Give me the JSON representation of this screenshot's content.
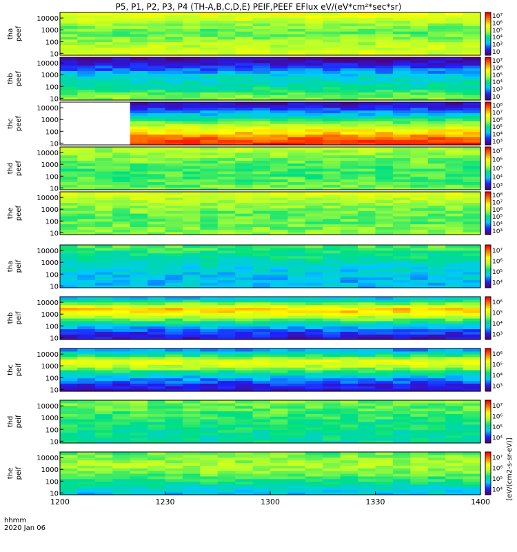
{
  "chart_data": {
    "type": "heatmap",
    "title": "P5, P1, P2, P3, P4 (TH-A,B,C,D,E) PEIF,PEEF EFlux eV/(eV*cm²*sec*sr)",
    "cbar_unit_label": "[eV/(cm2-s-sr-eV)]",
    "x_axis": {
      "ticks": [
        "1200",
        "1230",
        "1300",
        "1330",
        "1400"
      ],
      "corner_line1": "hhmm",
      "corner_line2": "2020 Jan 06",
      "range": [
        "12:00",
        "14:00"
      ]
    },
    "y_axis": {
      "scale": "log",
      "range": [
        7,
        30000
      ],
      "ticks": [
        "10",
        "100",
        "1000",
        "10000"
      ]
    },
    "colormap": [
      "#500070",
      "#2020ff",
      "#00c8ff",
      "#00e080",
      "#b0ff30",
      "#ffff00",
      "#ff8000",
      "#ff0000"
    ],
    "panels": [
      {
        "name": "tha peef",
        "label1": "tha",
        "label2": "peef",
        "cbar": [
          "10",
          "10³",
          "10⁴",
          "10⁵",
          "10⁶",
          "10⁷"
        ],
        "profile": [
          0.64,
          0.62,
          0.58,
          0.52,
          0.5,
          0.55,
          0.62,
          0.68
        ]
      },
      {
        "name": "thb peef",
        "label1": "thb",
        "label2": "peef",
        "cbar": [
          "10",
          "10³",
          "10⁴",
          "10⁵",
          "10⁶",
          "10⁷"
        ],
        "profile": [
          0.55,
          0.48,
          0.4,
          0.36,
          0.33,
          0.22,
          0.12,
          0.05
        ]
      },
      {
        "name": "thc peef",
        "label1": "thc",
        "label2": "peef",
        "cbar": [
          "10³",
          "10⁴",
          "10⁵",
          "10⁶",
          "10⁷",
          "10⁸"
        ],
        "profile": [
          0.95,
          0.88,
          0.75,
          0.62,
          0.48,
          0.32,
          0.18,
          0.08
        ],
        "gap_end_min": 16
      },
      {
        "name": "thd peef",
        "label1": "thd",
        "label2": "peef",
        "cbar": [
          "10³",
          "10⁴",
          "10⁵",
          "10⁶",
          "10⁷"
        ],
        "profile": [
          0.52,
          0.5,
          0.48,
          0.47,
          0.48,
          0.52,
          0.56,
          0.58
        ]
      },
      {
        "name": "the peef",
        "label1": "the",
        "label2": "peef",
        "cbar": [
          "10³",
          "10⁴",
          "10⁵",
          "10⁶",
          "10⁷",
          "10⁸"
        ],
        "profile": [
          0.55,
          0.52,
          0.5,
          0.5,
          0.52,
          0.55,
          0.6,
          0.65
        ]
      },
      {
        "name": "tha peif",
        "label1": "tha",
        "label2": "peif",
        "cbar": [
          "10⁴",
          "10⁵",
          "10⁶",
          "10⁷"
        ],
        "profile": [
          0.3,
          0.28,
          0.3,
          0.32,
          0.35,
          0.4,
          0.44,
          0.48
        ]
      },
      {
        "name": "thb peif",
        "label1": "thb",
        "label2": "peif",
        "cbar": [
          "10³",
          "10⁴",
          "10⁵",
          "10⁶"
        ],
        "profile": [
          0.1,
          0.15,
          0.28,
          0.45,
          0.65,
          0.8,
          0.55,
          0.3
        ]
      },
      {
        "name": "thc peif",
        "label1": "thc",
        "label2": "peif",
        "cbar": [
          "10³",
          "10⁴",
          "10⁵",
          "10⁶"
        ],
        "profile": [
          0.1,
          0.14,
          0.25,
          0.4,
          0.58,
          0.7,
          0.45,
          0.25
        ]
      },
      {
        "name": "thd peif",
        "label1": "thd",
        "label2": "peif",
        "cbar": [
          "10⁴",
          "10⁵",
          "10⁶",
          "10⁷"
        ],
        "profile": [
          0.4,
          0.4,
          0.42,
          0.43,
          0.45,
          0.48,
          0.5,
          0.52
        ]
      },
      {
        "name": "the peif",
        "label1": "the",
        "label2": "peif",
        "cbar": [
          "10⁴",
          "10⁵",
          "10⁶",
          "10⁷"
        ],
        "profile": [
          0.3,
          0.35,
          0.42,
          0.48,
          0.55,
          0.58,
          0.55,
          0.5
        ]
      }
    ]
  }
}
